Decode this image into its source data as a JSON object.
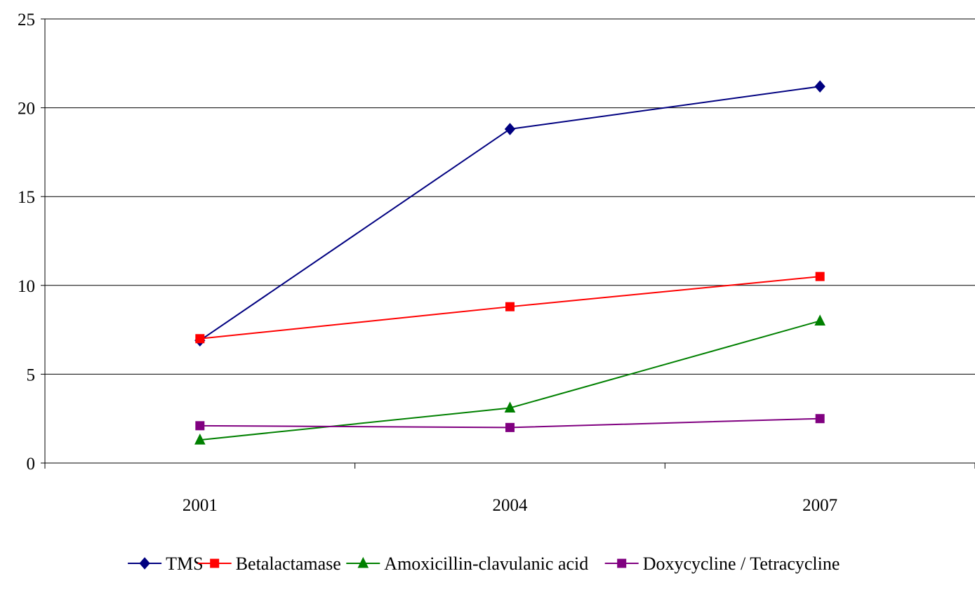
{
  "chart_data": {
    "type": "line",
    "categories": [
      "2001",
      "2004",
      "2007"
    ],
    "ylim": [
      0,
      25
    ],
    "yticks": [
      0,
      5,
      10,
      15,
      20,
      25
    ],
    "grid": true,
    "legend_position": "bottom",
    "title": "",
    "xlabel": "",
    "ylabel": "",
    "series": [
      {
        "name": "TMS",
        "values": [
          6.9,
          18.8,
          21.2
        ],
        "color": "#000080",
        "marker": "diamond"
      },
      {
        "name": "Betalactamase",
        "values": [
          7.0,
          8.8,
          10.5
        ],
        "color": "#ff0000",
        "marker": "square"
      },
      {
        "name": "Amoxicillin-clavulanic acid",
        "values": [
          1.3,
          3.1,
          8.0
        ],
        "color": "#008000",
        "marker": "triangle"
      },
      {
        "name": "Doxycycline / Tetracycline",
        "values": [
          2.1,
          2.0,
          2.5
        ],
        "color": "#800080",
        "marker": "square"
      }
    ]
  }
}
